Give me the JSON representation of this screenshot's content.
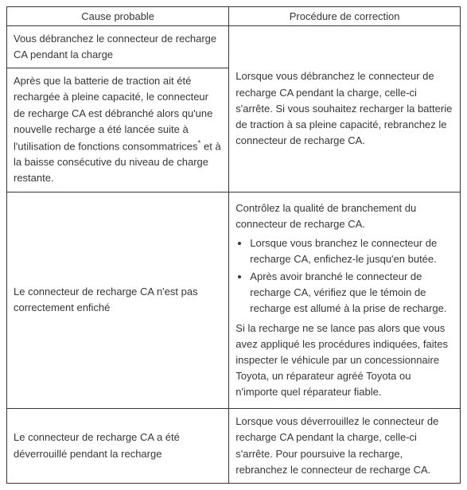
{
  "table": {
    "header": {
      "cause": "Cause probable",
      "procedure": "Procédure de correction"
    },
    "row1": {
      "cause_a": "Vous débranchez le connecteur de recharge CA pendant la charge",
      "cause_b_1": "Après que la batterie de traction ait été rechargée à pleine capacité, le connecteur de recharge CA est débranché alors qu'une nouvelle recharge a été lancée suite à l'utilisation de fonctions consommatrices",
      "cause_b_sup": "*",
      "cause_b_2": " et à la baisse consécutive du niveau de charge restante.",
      "procedure": "Lorsque vous débranchez le connecteur de recharge CA pendant la charge, celle-ci s'arrête. Si vous souhaitez recharger la batterie de traction à sa pleine capacité, rebranchez le connecteur de recharge CA."
    },
    "row2": {
      "cause": "Le connecteur de recharge CA n'est pas correctement enfiché",
      "procedure_p1": "Contrôlez la qualité de branchement du connecteur de recharge CA.",
      "procedure_li1": "Lorsque vous branchez le connecteur de recharge CA, enfichez-le jusqu'en butée.",
      "procedure_li2": "Après avoir branché le connecteur de recharge CA, vérifiez que le témoin de recharge est allumé à la prise de recharge.",
      "procedure_p2": "Si la recharge ne se lance pas alors que vous avez appliqué les procédures indiquées, faites inspecter le véhicule par un concessionnaire Toyota, un réparateur agréé Toyota ou n'importe quel réparateur fiable."
    },
    "row3": {
      "cause": "Le connecteur de recharge CA a été déverrouillé pendant la recharge",
      "procedure": "Lorsque vous déverrouillez le connecteur de recharge CA pendant la charge, celle-ci s'arrête. Pour poursuive la recharge, rebranchez le connecteur de recharge CA."
    }
  }
}
